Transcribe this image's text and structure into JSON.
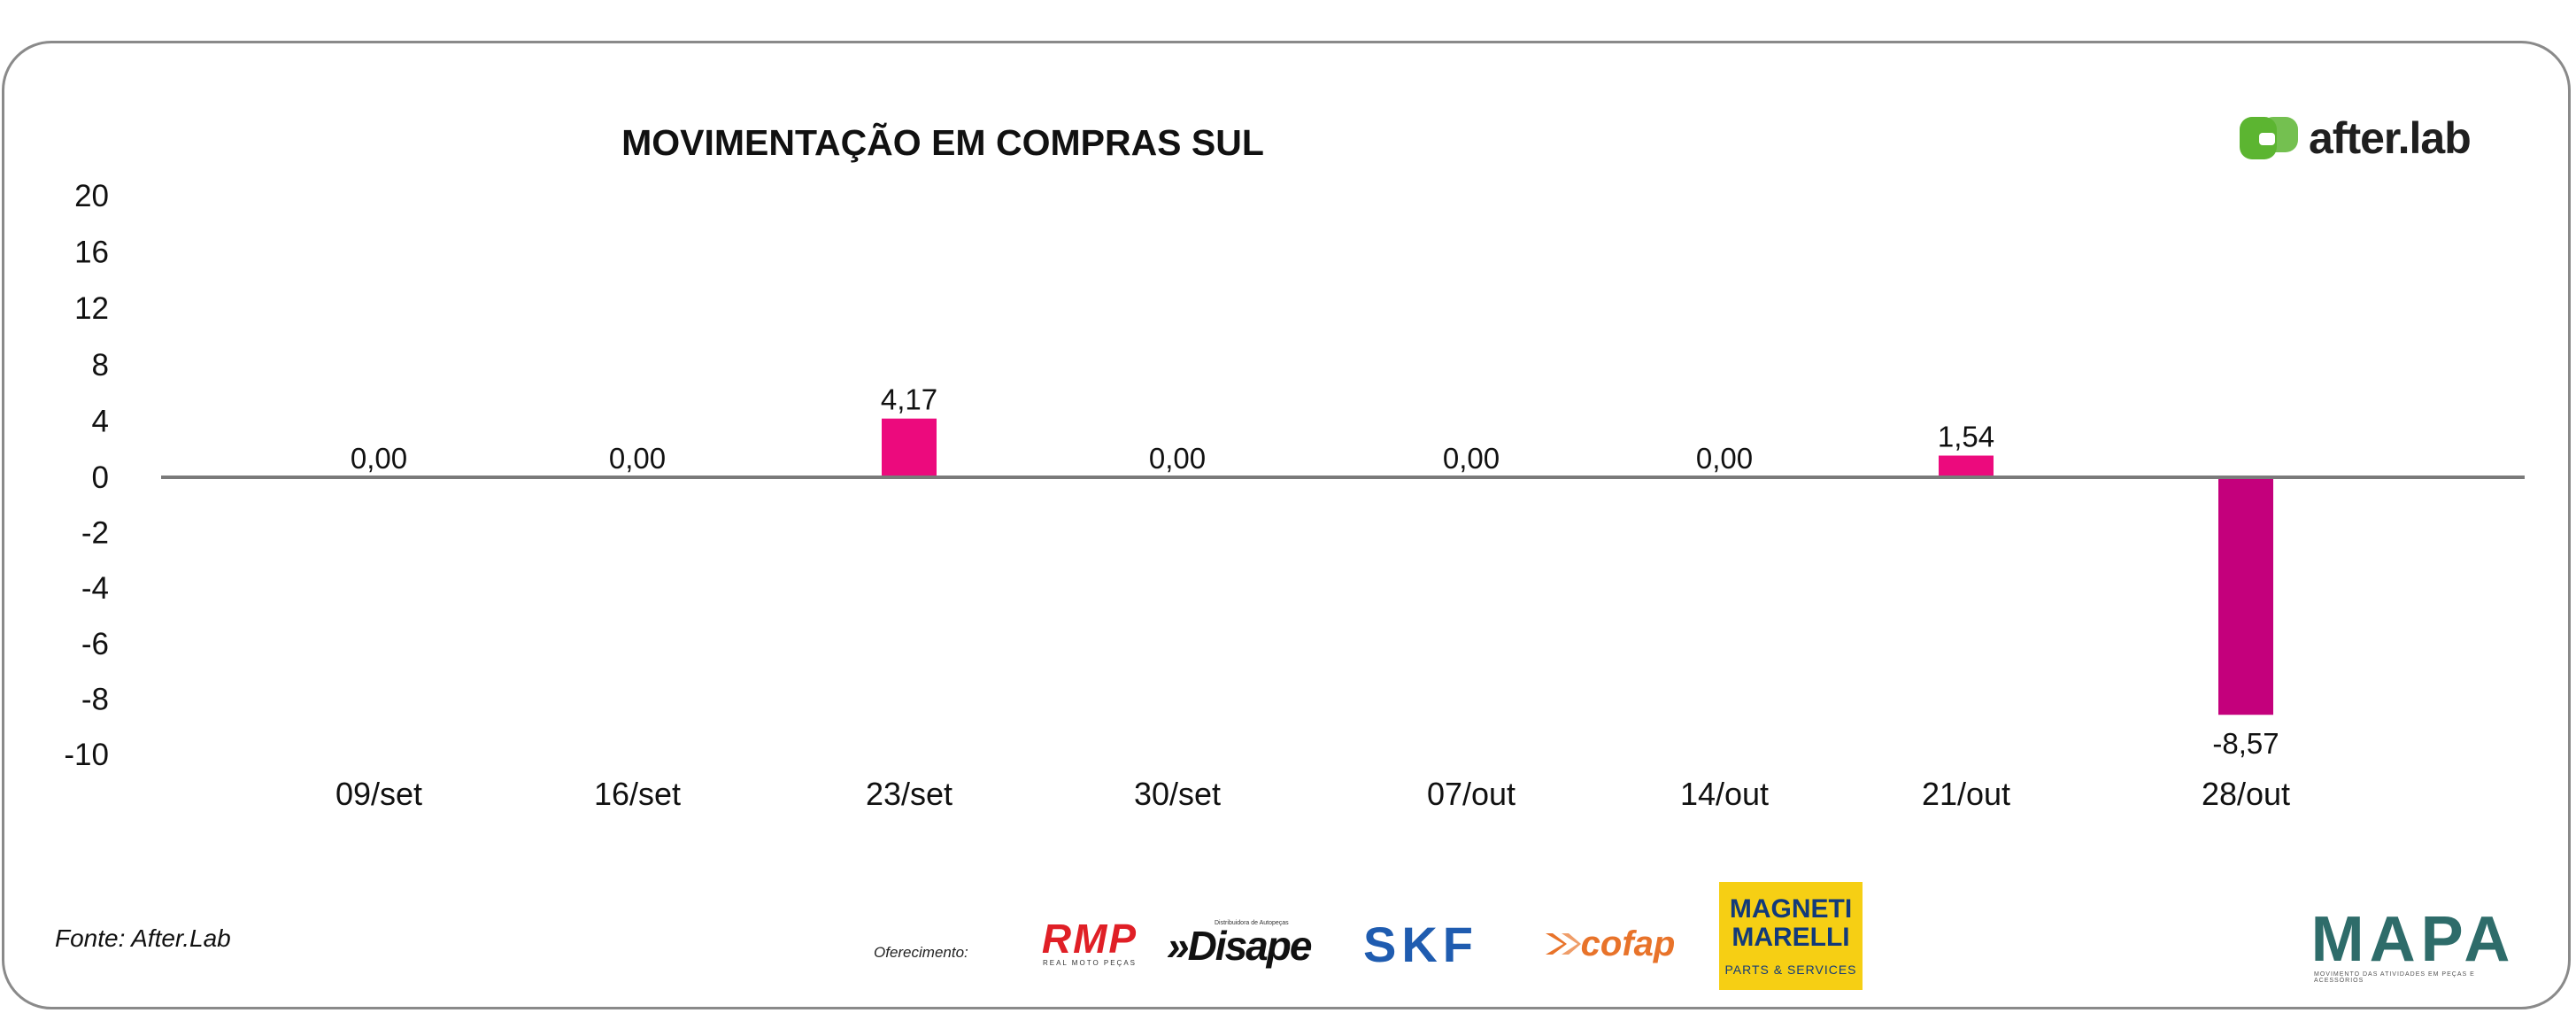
{
  "chart_data": {
    "type": "bar",
    "title": "MOVIMENTAÇÃO EM COMPRAS SUL",
    "categories": [
      "09/set",
      "16/set",
      "23/set",
      "30/set",
      "07/out",
      "14/out",
      "21/out",
      "28/out"
    ],
    "values": [
      0.0,
      0.0,
      4.17,
      0.0,
      0.0,
      0.0,
      1.54,
      -8.57
    ],
    "value_labels": [
      "0,00",
      "0,00",
      "4,17",
      "0,00",
      "0,00",
      "0,00",
      "1,54",
      "-8,57"
    ],
    "y_ticks": [
      "20",
      "16",
      "12",
      "8",
      "4",
      "0",
      "-2",
      "-4",
      "-6",
      "-8",
      "-10"
    ],
    "ylim": [
      -10,
      20
    ],
    "xlabel": "",
    "ylabel": "",
    "grid": false,
    "colors": {
      "positive": "#ec0a7d",
      "negative": "#c4007c",
      "axis": "#7a7a7a"
    }
  },
  "brand": {
    "name": "after.lab",
    "icon": "after-lab-logo-icon",
    "color": "#5cb531"
  },
  "footer": {
    "source": "Fonte: After.Lab",
    "offer_label": "Oferecimento:",
    "sponsors": {
      "rmp": {
        "main": "RMP",
        "sub": "REAL MOTO PEÇAS"
      },
      "disape": {
        "main": "»Disape",
        "sub": "Distribuidora de Autopeças"
      },
      "skf": {
        "main": "SKF"
      },
      "cofap": {
        "main": "cofap"
      },
      "magneti": {
        "top": "MAGNETI MARELLI",
        "bottom": "PARTS & SERVICES"
      },
      "mapa": {
        "main": "MAPA",
        "sub": "MOVIMENTO DAS ATIVIDADES EM PEÇAS E ACESSÓRIOS"
      }
    }
  }
}
